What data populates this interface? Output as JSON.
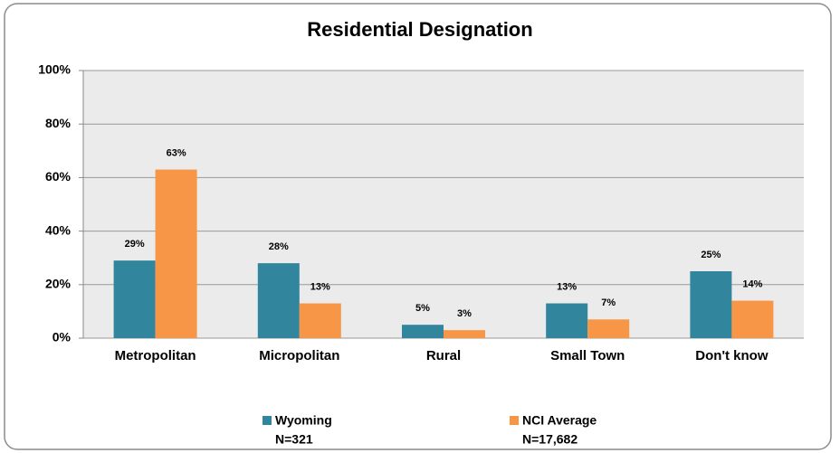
{
  "chart_data": {
    "type": "bar",
    "title": "Residential Designation",
    "categories": [
      "Metropolitan",
      "Micropolitan",
      "Rural",
      "Small Town",
      "Don't know"
    ],
    "series": [
      {
        "name": "Wyoming",
        "n_label": "N=321",
        "color": "#31859c",
        "values": [
          29,
          28,
          5,
          13,
          25
        ],
        "value_labels": [
          "29%",
          "28%",
          "5%",
          "13%",
          "25%"
        ]
      },
      {
        "name": "NCI Average",
        "n_label": "N=17,682",
        "color": "#f79646",
        "values": [
          63,
          13,
          3,
          7,
          14
        ],
        "value_labels": [
          "63%",
          "13%",
          "3%",
          "7%",
          "14%"
        ]
      }
    ],
    "ylim": [
      0,
      100
    ],
    "yticks": [
      {
        "value": 0,
        "label": "0%"
      },
      {
        "value": 20,
        "label": "20%"
      },
      {
        "value": 40,
        "label": "40%"
      },
      {
        "value": 60,
        "label": "60%"
      },
      {
        "value": 80,
        "label": "80%"
      },
      {
        "value": 100,
        "label": "100%"
      }
    ],
    "grid": true,
    "legend": "bottom"
  }
}
